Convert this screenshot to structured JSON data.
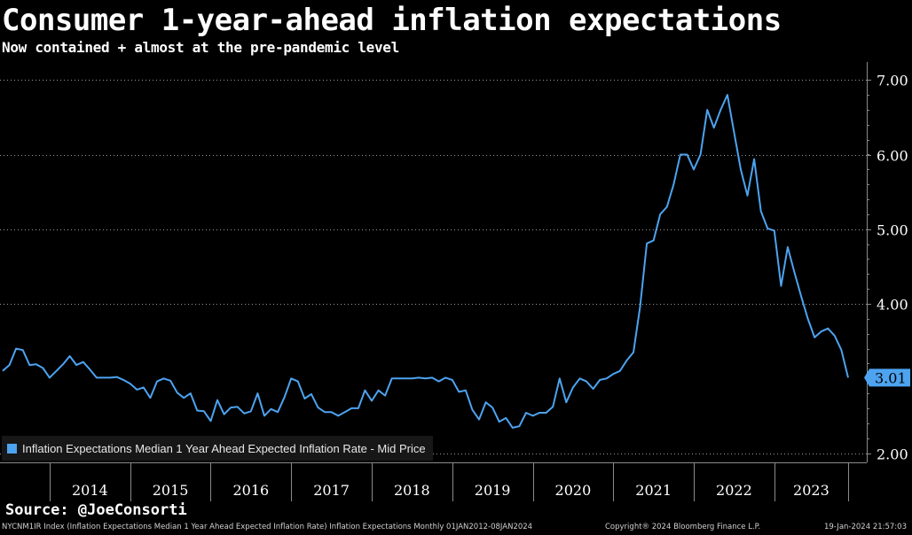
{
  "chart_data": {
    "type": "line",
    "title": "Consumer 1-year-ahead inflation expectations",
    "subtitle": "Now contained + almost at the pre-pandemic level",
    "x_start": "2013-06",
    "x_end": "2023-12",
    "year_labels": [
      "2014",
      "2015",
      "2016",
      "2017",
      "2018",
      "2019",
      "2020",
      "2021",
      "2022",
      "2023"
    ],
    "y_ticks": [
      "7.00",
      "6.00",
      "5.00",
      "4.00",
      "2.00"
    ],
    "ylim": [
      2.0,
      7.2
    ],
    "grid": true,
    "legend_position": "bottom-left",
    "last_value_label": "3.01",
    "series": [
      {
        "name": "Inflation Expectations Median 1 Year Ahead Expected Inflation Rate - Mid Price",
        "color": "#4da3f0",
        "values": [
          3.1,
          3.18,
          3.4,
          3.38,
          3.18,
          3.19,
          3.14,
          3.01,
          3.1,
          3.19,
          3.3,
          3.18,
          3.22,
          3.12,
          3.01,
          3.01,
          3.01,
          3.02,
          2.98,
          2.93,
          2.85,
          2.88,
          2.74,
          2.96,
          3.0,
          2.97,
          2.81,
          2.74,
          2.8,
          2.57,
          2.56,
          2.43,
          2.71,
          2.52,
          2.61,
          2.62,
          2.53,
          2.56,
          2.8,
          2.5,
          2.59,
          2.55,
          2.75,
          3.0,
          2.96,
          2.73,
          2.79,
          2.61,
          2.55,
          2.55,
          2.5,
          2.55,
          2.6,
          2.6,
          2.84,
          2.7,
          2.84,
          2.77,
          3.0,
          3.0,
          3.0,
          3.0,
          3.01,
          3.0,
          3.01,
          2.96,
          3.01,
          2.98,
          2.82,
          2.84,
          2.58,
          2.45,
          2.68,
          2.61,
          2.42,
          2.47,
          2.34,
          2.36,
          2.54,
          2.5,
          2.54,
          2.54,
          2.62,
          3.0,
          2.68,
          2.88,
          3.0,
          2.96,
          2.86,
          2.98,
          3.0,
          3.06,
          3.1,
          3.24,
          3.35,
          3.96,
          4.81,
          4.85,
          5.2,
          5.3,
          5.6,
          6.0,
          6.0,
          5.8,
          6.0,
          6.6,
          6.36,
          6.6,
          6.8,
          6.3,
          5.8,
          5.45,
          5.94,
          5.24,
          5.01,
          4.98,
          4.24,
          4.76,
          4.42,
          4.1,
          3.8,
          3.55,
          3.63,
          3.67,
          3.57,
          3.38,
          3.01
        ]
      }
    ]
  },
  "footer": {
    "source": "Source: @JoeConsorti",
    "description": "NYCNM1IR Index (Inflation Expectations Median 1 Year Ahead Expected Inflation Rate) Inflation Expectations  Monthly 01JAN2012-08JAN2024",
    "copyright": "Copyright® 2024 Bloomberg Finance L.P.",
    "timestamp": "19-Jan-2024 21:57:03"
  }
}
